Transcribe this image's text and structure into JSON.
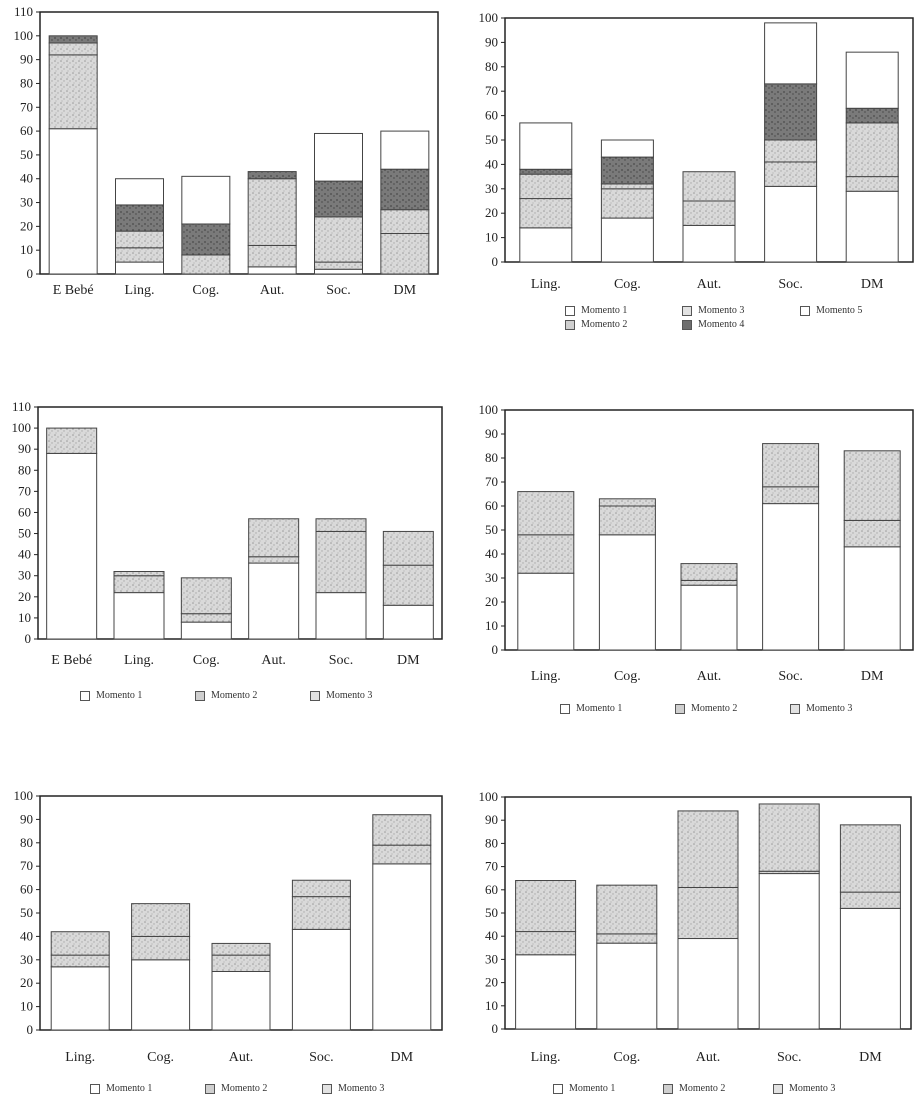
{
  "colors": {
    "m1": "#ffffff",
    "m2": "#cfcfcf",
    "m3": "#e2e2e2",
    "m4": "#6e6e6e",
    "m5": "#ffffff",
    "stroke": "#333333"
  },
  "chart_data": [
    {
      "type": "bar",
      "stacked": true,
      "title": "",
      "categories": [
        "E Bebé",
        "Ling.",
        "Cog.",
        "Aut.",
        "Soc.",
        "DM"
      ],
      "ylim": [
        0,
        110
      ],
      "yticks": [
        0,
        10,
        20,
        30,
        40,
        50,
        60,
        70,
        80,
        90,
        100,
        110
      ],
      "series": [
        {
          "key": "m1",
          "values": [
            61,
            5,
            0,
            3,
            2,
            0
          ]
        },
        {
          "key": "m2",
          "values": [
            31,
            6,
            8,
            9,
            3,
            17
          ]
        },
        {
          "key": "m3",
          "values": [
            5,
            7,
            0,
            28,
            19,
            10
          ]
        },
        {
          "key": "m4",
          "values": [
            3,
            11,
            13,
            3,
            15,
            17
          ]
        },
        {
          "key": "m5",
          "values": [
            0,
            11,
            20,
            0,
            20,
            16
          ]
        }
      ],
      "legend": []
    },
    {
      "type": "bar",
      "stacked": true,
      "title": "",
      "categories": [
        "Ling.",
        "Cog.",
        "Aut.",
        "Soc.",
        "DM"
      ],
      "ylim": [
        0,
        100
      ],
      "yticks": [
        0,
        10,
        20,
        30,
        40,
        50,
        60,
        70,
        80,
        90,
        100
      ],
      "series": [
        {
          "key": "m1",
          "values": [
            14,
            18,
            15,
            31,
            29
          ]
        },
        {
          "key": "m2",
          "values": [
            12,
            12,
            10,
            10,
            6
          ]
        },
        {
          "key": "m3",
          "values": [
            10,
            2,
            12,
            9,
            22
          ]
        },
        {
          "key": "m4",
          "values": [
            2,
            11,
            0,
            23,
            6
          ]
        },
        {
          "key": "m5",
          "values": [
            19,
            7,
            0,
            25,
            23
          ]
        }
      ],
      "legend": [
        {
          "key": "m1",
          "label": "Momento 1"
        },
        {
          "key": "m3",
          "label": "Momento 3"
        },
        {
          "key": "m5",
          "label": "Momento 5"
        },
        {
          "key": "m2",
          "label": "Momento 2"
        },
        {
          "key": "m4",
          "label": "Momento 4"
        }
      ]
    },
    {
      "type": "bar",
      "stacked": true,
      "title": "",
      "categories": [
        "E Bebé",
        "Ling.",
        "Cog.",
        "Aut.",
        "Soc.",
        "DM"
      ],
      "ylim": [
        0,
        110
      ],
      "yticks": [
        0,
        10,
        20,
        30,
        40,
        50,
        60,
        70,
        80,
        90,
        100,
        110
      ],
      "series": [
        {
          "key": "m1",
          "values": [
            88,
            22,
            8,
            36,
            22,
            16
          ]
        },
        {
          "key": "m2",
          "values": [
            12,
            8,
            4,
            3,
            29,
            19
          ]
        },
        {
          "key": "m3",
          "values": [
            0,
            2,
            17,
            18,
            6,
            16
          ]
        }
      ],
      "legend": [
        {
          "key": "m1",
          "label": "Momento 1"
        },
        {
          "key": "m2",
          "label": "Momento 2"
        },
        {
          "key": "m3",
          "label": "Momento 3"
        }
      ]
    },
    {
      "type": "bar",
      "stacked": true,
      "title": "",
      "categories": [
        "Ling.",
        "Cog.",
        "Aut.",
        "Soc.",
        "DM"
      ],
      "ylim": [
        0,
        100
      ],
      "yticks": [
        0,
        10,
        20,
        30,
        40,
        50,
        60,
        70,
        80,
        90,
        100
      ],
      "series": [
        {
          "key": "m1",
          "values": [
            32,
            48,
            27,
            61,
            43
          ]
        },
        {
          "key": "m2",
          "values": [
            16,
            12,
            2,
            7,
            11
          ]
        },
        {
          "key": "m3",
          "values": [
            18,
            3,
            7,
            18,
            29
          ]
        }
      ],
      "legend": [
        {
          "key": "m1",
          "label": "Momento 1"
        },
        {
          "key": "m2",
          "label": "Momento 2"
        },
        {
          "key": "m3",
          "label": "Momento 3"
        }
      ]
    },
    {
      "type": "bar",
      "stacked": true,
      "title": "",
      "categories": [
        "Ling.",
        "Cog.",
        "Aut.",
        "Soc.",
        "DM"
      ],
      "ylim": [
        0,
        100
      ],
      "yticks": [
        0,
        10,
        20,
        30,
        40,
        50,
        60,
        70,
        80,
        90,
        100
      ],
      "series": [
        {
          "key": "m1",
          "values": [
            27,
            30,
            25,
            43,
            71
          ]
        },
        {
          "key": "m2",
          "values": [
            5,
            10,
            7,
            14,
            8
          ]
        },
        {
          "key": "m3",
          "values": [
            10,
            14,
            5,
            7,
            13
          ]
        }
      ],
      "legend": [
        {
          "key": "m1",
          "label": "Momento 1"
        },
        {
          "key": "m2",
          "label": "Momento 2"
        },
        {
          "key": "m3",
          "label": "Momento 3"
        }
      ]
    },
    {
      "type": "bar",
      "stacked": true,
      "title": "",
      "categories": [
        "Ling.",
        "Cog.",
        "Aut.",
        "Soc.",
        "DM"
      ],
      "ylim": [
        0,
        100
      ],
      "yticks": [
        0,
        10,
        20,
        30,
        40,
        50,
        60,
        70,
        80,
        90,
        100
      ],
      "series": [
        {
          "key": "m1",
          "values": [
            32,
            37,
            39,
            67,
            52
          ]
        },
        {
          "key": "m2",
          "values": [
            10,
            4,
            22,
            1,
            7
          ]
        },
        {
          "key": "m3",
          "values": [
            22,
            21,
            33,
            29,
            29
          ]
        }
      ],
      "legend": [
        {
          "key": "m1",
          "label": "Momento 1"
        },
        {
          "key": "m2",
          "label": "Momento 2"
        },
        {
          "key": "m3",
          "label": "Momento 3"
        }
      ]
    }
  ]
}
